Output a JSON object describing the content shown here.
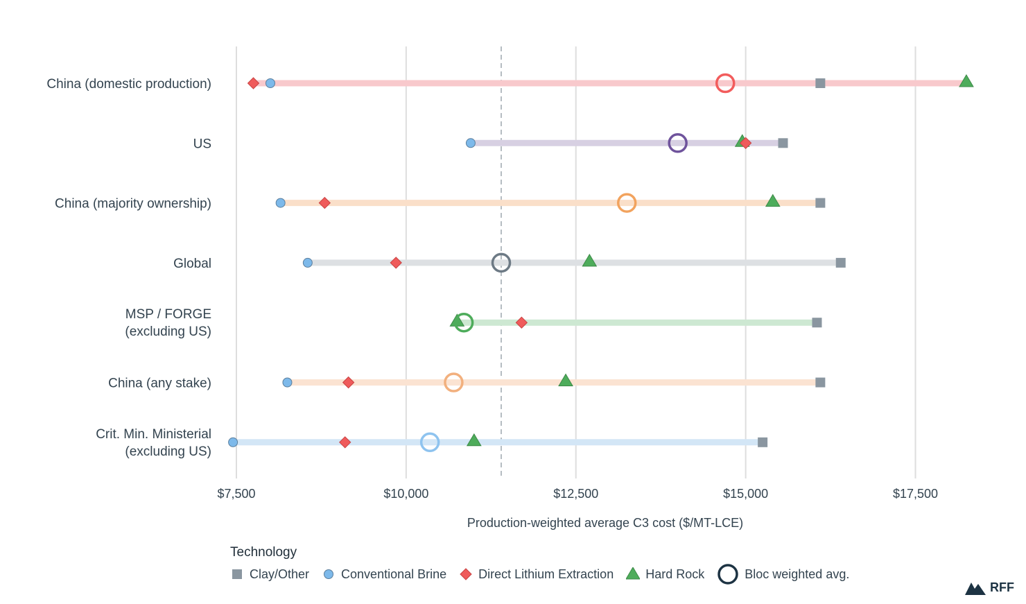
{
  "chart_data": {
    "type": "scatter",
    "xlabel": "Production-weighted average C3 cost ($/MT-LCE)",
    "xlim": [
      7500,
      18000
    ],
    "xticks": [
      7500,
      10000,
      12500,
      15000,
      17500
    ],
    "xtick_labels": [
      "$7,500",
      "$10,000",
      "$12,500",
      "$15,000",
      "$17,500"
    ],
    "reference_line": 11400,
    "categories": [
      {
        "label_lines": [
          "China (domestic production)"
        ],
        "bar_color": "#f8c9cc",
        "avg_color": "#f25c5c",
        "clay": 16100,
        "brine": 8000,
        "dle": 7750,
        "hard_rock": 18250,
        "avg": 14700
      },
      {
        "label_lines": [
          "US"
        ],
        "bar_color": "#d7d0e2",
        "avg_color": "#6f539c",
        "clay": 15550,
        "brine": 10950,
        "dle": 15000,
        "hard_rock": 14950,
        "avg": 14000
      },
      {
        "label_lines": [
          "China (majority ownership)"
        ],
        "bar_color": "#fadfc9",
        "avg_color": "#f2a35e",
        "clay": 16100,
        "brine": 8150,
        "dle": 8800,
        "hard_rock": 15400,
        "avg": 13250
      },
      {
        "label_lines": [
          "Global"
        ],
        "bar_color": "#dde0e3",
        "avg_color": "#6d7a85",
        "clay": 16400,
        "brine": 8550,
        "dle": 9850,
        "hard_rock": 12700,
        "avg": 11400
      },
      {
        "label_lines": [
          "MSP / FORGE",
          "(excluding US)"
        ],
        "bar_color": "#cde8d2",
        "avg_color": "#4eac5b",
        "clay": 16050,
        "brine": null,
        "dle": 11700,
        "hard_rock": 10750,
        "avg": 10850
      },
      {
        "label_lines": [
          "China (any stake)"
        ],
        "bar_color": "#fbe3d2",
        "avg_color": "#f2b07e",
        "clay": 16100,
        "brine": 8250,
        "dle": 9150,
        "hard_rock": 12350,
        "avg": 10700
      },
      {
        "label_lines": [
          "Crit. Min. Ministerial",
          "(excluding US)"
        ],
        "bar_color": "#d3e6f6",
        "avg_color": "#8ec3ef",
        "clay": 15250,
        "brine": 7450,
        "dle": 9100,
        "hard_rock": 11000,
        "avg": 10350
      }
    ],
    "legend": {
      "title": "Technology",
      "items": [
        {
          "key": "clay",
          "label": "Clay/Other",
          "color": "#8a96a0",
          "shape": "square"
        },
        {
          "key": "brine",
          "label": "Conventional Brine",
          "color": "#7db9ea",
          "shape": "circle"
        },
        {
          "key": "dle",
          "label": "Direct Lithium Extraction",
          "color": "#ef5b5b",
          "shape": "diamond"
        },
        {
          "key": "hard_rock",
          "label": "Hard Rock",
          "color": "#4eac5b",
          "shape": "triangle"
        },
        {
          "key": "avg",
          "label": "Bloc weighted avg.",
          "color": "#1d3343",
          "shape": "ring"
        }
      ]
    }
  },
  "branding": {
    "logo_text": "RFF",
    "logo_icon": "mountain-icon",
    "logo_color": "#1d3343"
  }
}
